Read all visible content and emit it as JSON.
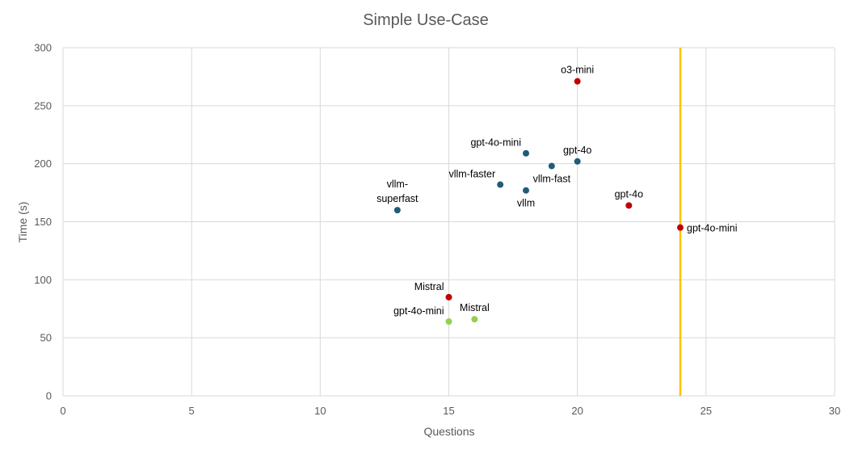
{
  "chart_data": {
    "type": "scatter",
    "title": "Simple Use-Case",
    "xlabel": "Questions",
    "ylabel": "Time (s)",
    "xlim": [
      0,
      30
    ],
    "ylim": [
      0,
      300
    ],
    "x_ticks": [
      "0",
      "5",
      "10",
      "15",
      "20",
      "25",
      "30"
    ],
    "y_ticks": [
      "0",
      "50",
      "100",
      "150",
      "200",
      "250",
      "300"
    ],
    "grid": true,
    "legend": "none",
    "vertical_line": {
      "x": 24,
      "color": "#FFC000"
    },
    "series": [
      {
        "color": "#1F5C7A",
        "points": [
          {
            "x": 13,
            "y": 160,
            "label": [
              "vllm-",
              "superfast"
            ],
            "label_pos": "above"
          },
          {
            "x": 17,
            "y": 182,
            "label": [
              "vllm-faster"
            ],
            "label_pos": "above-left"
          },
          {
            "x": 18,
            "y": 209,
            "label": [
              "gpt-4o-mini"
            ],
            "label_pos": "above-left"
          },
          {
            "x": 18,
            "y": 177,
            "label": [
              "vllm"
            ],
            "label_pos": "below"
          },
          {
            "x": 19,
            "y": 198,
            "label": [
              "vllm-fast"
            ],
            "label_pos": "below"
          },
          {
            "x": 20,
            "y": 202,
            "label": [
              "gpt-4o"
            ],
            "label_pos": "above"
          }
        ]
      },
      {
        "color": "#C00000",
        "points": [
          {
            "x": 15,
            "y": 85,
            "label": [
              "Mistral"
            ],
            "label_pos": "above-left"
          },
          {
            "x": 20,
            "y": 271,
            "label": [
              "o3-mini"
            ],
            "label_pos": "above"
          },
          {
            "x": 22,
            "y": 164,
            "label": [
              "gpt-4o"
            ],
            "label_pos": "above"
          },
          {
            "x": 24,
            "y": 145,
            "label": [
              "gpt-4o-mini"
            ],
            "label_pos": "right"
          }
        ]
      },
      {
        "color": "#92D050",
        "points": [
          {
            "x": 15,
            "y": 64,
            "label": [
              "gpt-4o-mini"
            ],
            "label_pos": "above-left"
          },
          {
            "x": 16,
            "y": 66,
            "label": [
              "Mistral"
            ],
            "label_pos": "above"
          }
        ]
      }
    ]
  }
}
